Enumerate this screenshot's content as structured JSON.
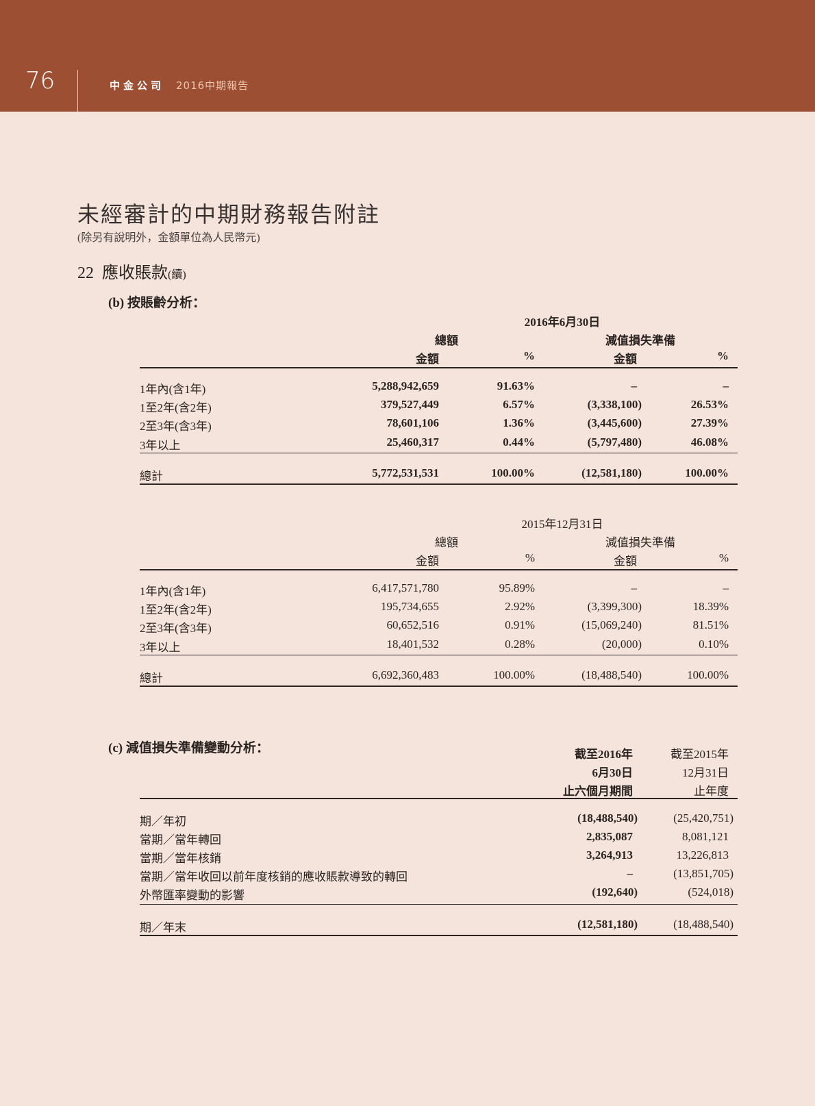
{
  "header": {
    "page_number": "76",
    "company": "中金公司",
    "report": "2016中期報告"
  },
  "title": "未經審計的中期財務報告附註",
  "subtitle": "(除另有說明外，金額單位為人民幣元)",
  "section": {
    "number": "22",
    "name": "應收賬款",
    "cont": "(續)"
  },
  "part_b": {
    "heading": "(b)  按賬齡分析：",
    "tables": [
      {
        "date": "2016年6月30日",
        "group1": "總額",
        "group2": "減值損失準備",
        "cols": [
          "金額",
          "%",
          "金額",
          "%"
        ],
        "rows": [
          {
            "label": "1年內(含1年)",
            "values": [
              "5,288,942,659",
              "91.63%",
              "–",
              "–"
            ]
          },
          {
            "label": "1至2年(含2年)",
            "values": [
              "379,527,449",
              "6.57%",
              "(3,338,100)",
              "26.53%"
            ]
          },
          {
            "label": "2至3年(含3年)",
            "values": [
              "78,601,106",
              "1.36%",
              "(3,445,600)",
              "27.39%"
            ]
          },
          {
            "label": "3年以上",
            "values": [
              "25,460,317",
              "0.44%",
              "(5,797,480)",
              "46.08%"
            ]
          }
        ],
        "total": {
          "label": "總計",
          "values": [
            "5,772,531,531",
            "100.00%",
            "(12,581,180)",
            "100.00%"
          ]
        }
      },
      {
        "date": "2015年12月31日",
        "group1": "總額",
        "group2": "減值損失準備",
        "cols": [
          "金額",
          "%",
          "金額",
          "%"
        ],
        "rows": [
          {
            "label": "1年內(含1年)",
            "values": [
              "6,417,571,780",
              "95.89%",
              "–",
              "–"
            ]
          },
          {
            "label": "1至2年(含2年)",
            "values": [
              "195,734,655",
              "2.92%",
              "(3,399,300)",
              "18.39%"
            ]
          },
          {
            "label": "2至3年(含3年)",
            "values": [
              "60,652,516",
              "0.91%",
              "(15,069,240)",
              "81.51%"
            ]
          },
          {
            "label": "3年以上",
            "values": [
              "18,401,532",
              "0.28%",
              "(20,000)",
              "0.10%"
            ]
          }
        ],
        "total": {
          "label": "總計",
          "values": [
            "6,692,360,483",
            "100.00%",
            "(18,488,540)",
            "100.00%"
          ]
        }
      }
    ]
  },
  "part_c": {
    "heading": "(c)  減值損失準備變動分析：",
    "col_headers": [
      [
        "截至2016年",
        "6月30日",
        "止六個月期間"
      ],
      [
        "截至2015年",
        "12月31日",
        "止年度"
      ]
    ],
    "rows": [
      {
        "label": "期／年初",
        "values": [
          "(18,488,540)",
          "(25,420,751)"
        ]
      },
      {
        "label": "當期／當年轉回",
        "values": [
          "2,835,087",
          "8,081,121"
        ]
      },
      {
        "label": "當期／當年核銷",
        "values": [
          "3,264,913",
          "13,226,813"
        ]
      },
      {
        "label": "當期／當年收回以前年度核銷的應收賬款導致的轉回",
        "values": [
          "–",
          "(13,851,705)"
        ]
      },
      {
        "label": "外幣匯率變動的影響",
        "values": [
          "(192,640)",
          "(524,018)"
        ]
      }
    ],
    "total": {
      "label": "期／年末",
      "values": [
        "(12,581,180)",
        "(18,488,540)"
      ]
    }
  }
}
